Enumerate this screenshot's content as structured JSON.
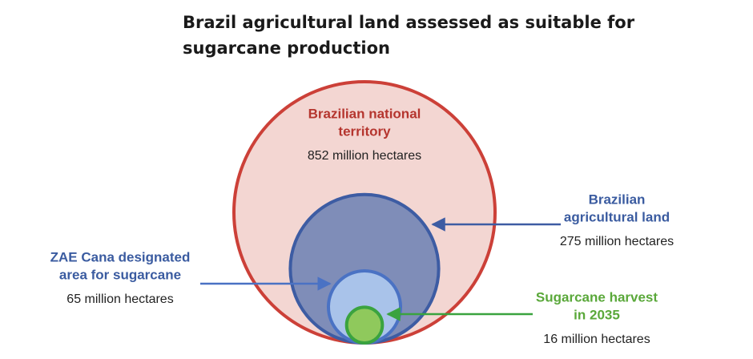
{
  "chart_data": {
    "type": "nested-circles",
    "title": "Brazil agricultural land assessed as suitable for sugarcane production",
    "categories": [
      [
        "Brazilian national",
        "territory"
      ],
      [
        "Brazilian",
        "agricultural land"
      ],
      [
        "ZAE Cana designated",
        "area for sugarcane"
      ],
      [
        "Sugarcane harvest",
        "in 2035"
      ]
    ],
    "values": [
      852,
      275,
      65,
      16
    ],
    "value_labels": [
      "852 million hectares",
      "275 million hectares",
      "65 million hectares",
      "16 million hectares"
    ],
    "colors": [
      "#f3d6d2",
      "#7f8db8",
      "#a9c3ea",
      "#8fc95c"
    ],
    "stroke_colors": [
      "#cc4038",
      "#3d5ca3",
      "#4a72c4",
      "#3aa33f"
    ],
    "label_colors": [
      "#b5352e",
      "#3a5ba0",
      "#3a5ba0",
      "#5aa83a"
    ]
  }
}
